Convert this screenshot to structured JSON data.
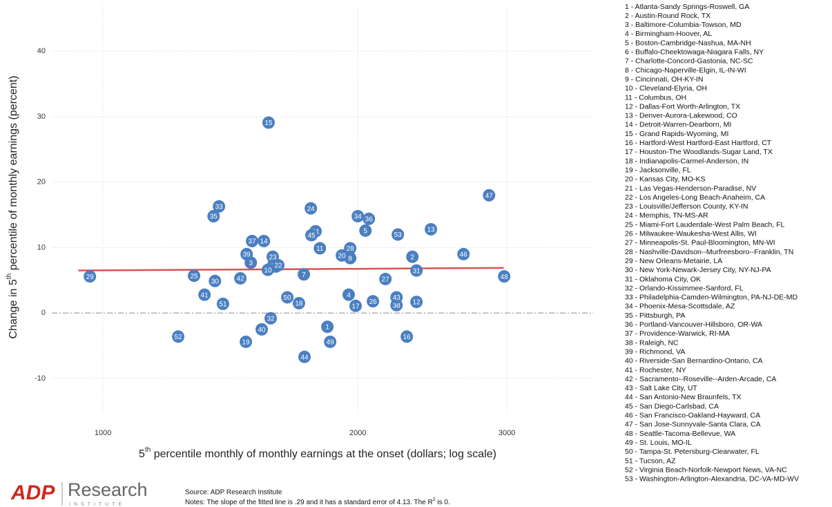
{
  "chart_data": {
    "type": "scatter",
    "xlabel": {
      "before": "5",
      "sup": "th",
      "after": " percentile monthly of monthly earnings at the onset (dollars; log scale)"
    },
    "ylabel": {
      "before": "Change in 5",
      "sup": "th",
      "after": " percentile of monthly earnings (percent)"
    },
    "x_log": true,
    "xlim": [
      870,
      3800
    ],
    "ylim": [
      -15.5,
      47
    ],
    "xticks": [
      1000,
      2000,
      3000
    ],
    "yticks": [
      -10,
      0,
      10,
      20,
      30,
      40
    ],
    "grid": true,
    "color": "#4a7fc1",
    "point_labels": [
      "1",
      "2",
      "3",
      "4",
      "5",
      "6",
      "7",
      "8",
      "9",
      "10",
      "11",
      "12",
      "13",
      "14",
      "15",
      "16",
      "17",
      "18",
      "19",
      "20",
      "21",
      "22",
      "23",
      "24",
      "25",
      "26",
      "27",
      "28",
      "29",
      "30",
      "31",
      "32",
      "33",
      "34",
      "35",
      "36",
      "37",
      "38",
      "39",
      "40",
      "41",
      "42",
      "43",
      "44",
      "45",
      "46",
      "47",
      "48",
      "49",
      "50",
      "51",
      "52",
      "53"
    ],
    "x": [
      1841,
      2320,
      1495,
      1951,
      2042,
      1600,
      1727,
      1959,
      1590,
      1566,
      1804,
      2346,
      2440,
      1549,
      1569,
      2285,
      1988,
      1704,
      1475,
      1915,
      1783,
      1611,
      1587,
      1760,
      1281,
      2084,
      2156,
      1959,
      965,
      1356,
      2346,
      1578,
      1371,
      2000,
      1351,
      2061,
      1500,
      2222,
      1478,
      1540,
      1318,
      1453,
      2222,
      1730,
      1763,
      2666,
      2858,
      2978,
      1855,
      1651,
      1386,
      1227,
      2230
    ],
    "values": [
      -2.1,
      8.6,
      7.7,
      2.8,
      12.6,
      7.1,
      5.9,
      8.4,
      7.4,
      6.6,
      9.9,
      1.7,
      12.8,
      11.0,
      29.1,
      -3.6,
      1.1,
      1.5,
      -4.4,
      8.8,
      12.5,
      7.3,
      8.6,
      16.0,
      5.7,
      1.8,
      5.2,
      9.9,
      5.6,
      4.9,
      6.5,
      -0.8,
      16.3,
      14.8,
      14.8,
      14.4,
      11.0,
      1.2,
      9.0,
      -2.5,
      2.8,
      5.3,
      2.4,
      -6.7,
      11.9,
      9.0,
      18.0,
      5.6,
      -4.4,
      2.4,
      1.4,
      -3.6,
      12.0
    ],
    "fit_line": {
      "x": [
        935,
        2975
      ],
      "y": [
        6.5,
        6.9
      ],
      "color": "#d9534f"
    },
    "zero_line": 0,
    "legend_entries": [
      "1 - Atlanta-Sandy Springs-Roswell, GA",
      "2 - Austin-Round Rock, TX",
      "3 - Baltimore-Columbia-Towson, MD",
      "4 - Birmingham-Hoover, AL",
      "5 - Boston-Cambridge-Nashua, MA-NH",
      "6 - Buffalo-Cheektowaga-Niagara Falls, NY",
      "7 - Charlotte-Concord-Gastonia, NC-SC",
      "8 - Chicago-Naperville-Elgin, IL-IN-WI",
      "9 - Cincinnati, OH-KY-IN",
      "10 - Cleveland-Elyria, OH",
      "11 - Columbus, OH",
      "12 - Dallas-Fort Worth-Arlington, TX",
      "13 - Denver-Aurora-Lakewood, CO",
      "14 - Detroit-Warren-Dearborn, MI",
      "15 - Grand Rapids-Wyoming, MI",
      "16 - Hartford-West Hartford-East Hartford, CT",
      "17 - Houston-The Woodlands-Sugar Land, TX",
      "18 - Indianapolis-Carmel-Anderson, IN",
      "19 - Jacksonville, FL",
      "20 - Kansas City, MO-KS",
      "21 - Las Vegas-Henderson-Paradise, NV",
      "22 - Los Angeles-Long Beach-Anaheim, CA",
      "23 - Louisville/Jefferson County, KY-IN",
      "24 - Memphis, TN-MS-AR",
      "25 - Miami-Fort Lauderdale-West Palm Beach, FL",
      "26 - Milwaukee-Waukesha-West Allis, WI",
      "27 - Minneapolis-St. Paul-Bloomington, MN-WI",
      "28 - Nashville-Davidson--Murfreesboro--Franklin, TN",
      "29 - New Orleans-Metairie, LA",
      "30 - New York-Newark-Jersey City, NY-NJ-PA",
      "31 - Oklahoma City, OK",
      "32 - Orlando-Kissimmee-Sanford, FL",
      "33 - Philadelphia-Camden-Wilmington, PA-NJ-DE-MD",
      "34 - Phoenix-Mesa-Scottsdale, AZ",
      "35 - Pittsburgh, PA",
      "36 - Portland-Vancouver-Hillsboro, OR-WA",
      "37 - Providence-Warwick, RI-MA",
      "38 - Raleigh, NC",
      "39 - Richmond, VA",
      "40 - Riverside-San Bernardino-Ontario, CA",
      "41 - Rochester, NY",
      "42 - Sacramento--Roseville--Arden-Arcade, CA",
      "43 - Salt Lake City, UT",
      "44 - San Antonio-New Braunfels, TX",
      "45 - San Diego-Carlsbad, CA",
      "46 - San Francisco-Oakland-Hayward, CA",
      "47 - San Jose-Sunnyvale-Santa Clara, CA",
      "48 - Seattle-Tacoma-Bellevue, WA",
      "49 - St. Louis, MO-IL",
      "50 - Tampa-St. Petersburg-Clearwater, FL",
      "51 - Tucson, AZ",
      "52 - Virginia Beach-Norfolk-Newport News, VA-NC",
      "53 - Washington-Arlington-Alexandria, DC-VA-MD-WV"
    ],
    "source": "Source: ADP Research Institute",
    "notes": {
      "before": "Notes: The slope of the fitted line is .29 and it has a standard error of 4.13. The R",
      "sup": "2",
      "after": " is 0."
    },
    "logo": {
      "mark": "ADP",
      "name": "Research",
      "sub": "INSTITUTE"
    }
  }
}
